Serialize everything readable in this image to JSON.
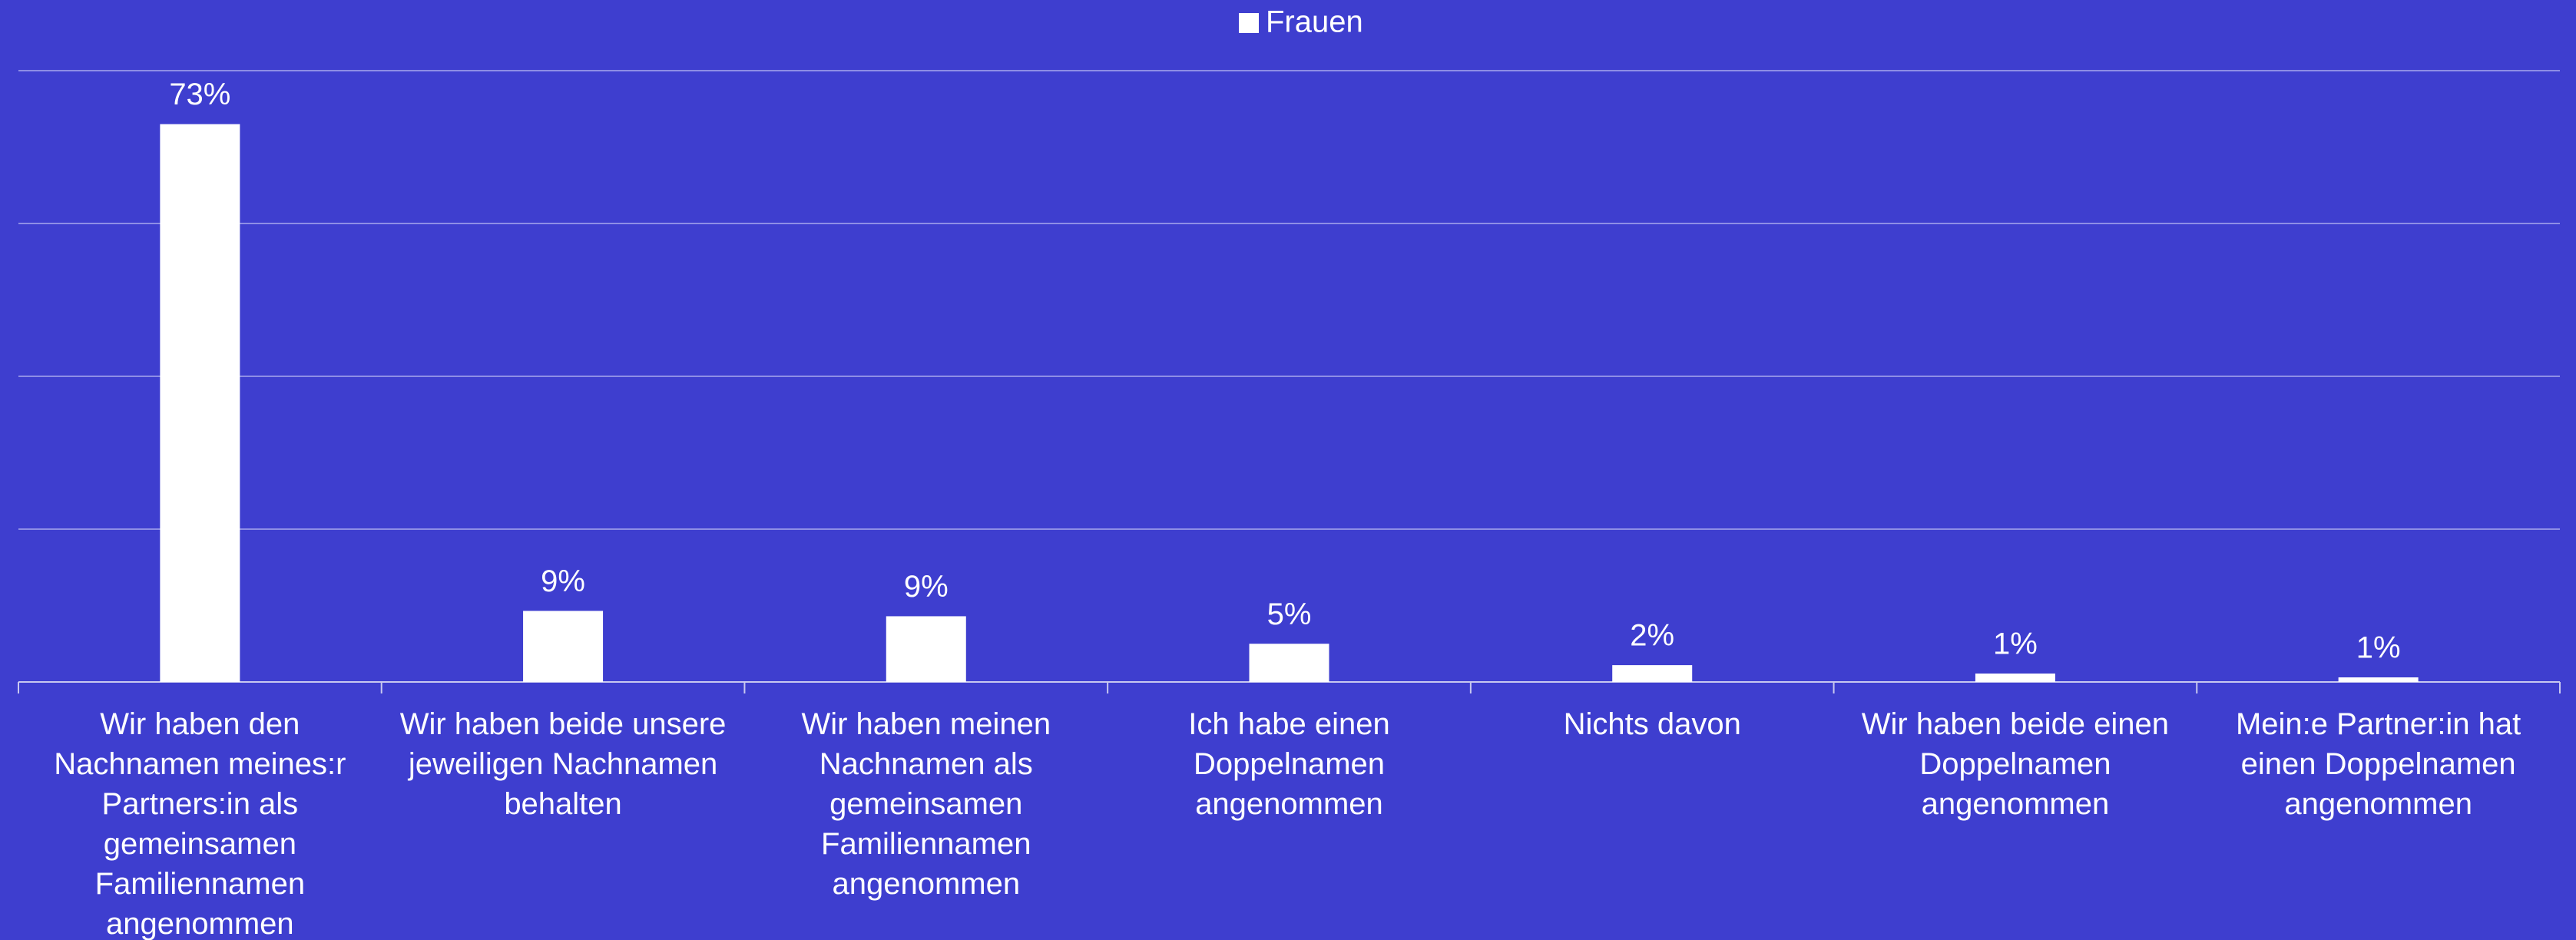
{
  "chart_data": {
    "type": "bar",
    "legend": "Frauen",
    "categories": [
      "Wir haben den Nachnamen meines:r Partners:in als gemeinsamen Familiennamen angenommen",
      "Wir haben beide unsere jeweiligen Nachnamen behalten",
      "Wir haben meinen Nachnamen als gemeinsamen Familiennamen angenommen",
      "Ich habe einen Doppelnamen angenommen",
      "Nichts davon",
      "Wir haben beide einen Doppelnamen angenommen",
      "Mein:e Partner:in hat einen Doppelnamen angenommen"
    ],
    "values": [
      73,
      9.3,
      8.6,
      5,
      2.2,
      1.1,
      0.6
    ],
    "value_labels": [
      "73%",
      "9%",
      "9%",
      "5%",
      "2%",
      "1%",
      "1%"
    ],
    "color": "#ffffff",
    "ylim": [
      0,
      80
    ],
    "yticks": [
      0,
      20,
      40,
      60,
      80
    ],
    "grid": true
  }
}
